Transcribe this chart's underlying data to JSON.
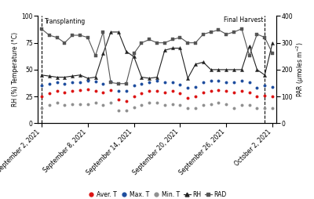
{
  "x_labels": [
    "September 2, 2021",
    "September 8, 2021",
    "September 14, 2021",
    "September 20, 2021",
    "September 26, 2021",
    "October 2, 2021"
  ],
  "x_tick_positions": [
    0,
    6,
    12,
    18,
    24,
    30
  ],
  "transplanting_x": 0,
  "final_harvest_x": 29,
  "aver_T": [
    25,
    28,
    30,
    29,
    30,
    31,
    32,
    30,
    29,
    31,
    22,
    21,
    25,
    28,
    30,
    30,
    29,
    30,
    28,
    24,
    25,
    29,
    30,
    31,
    30,
    29,
    30,
    29,
    25,
    26,
    25
  ],
  "max_T": [
    35,
    37,
    38,
    37,
    38,
    38,
    40,
    39,
    37,
    39,
    30,
    30,
    35,
    37,
    38,
    40,
    38,
    38,
    36,
    33,
    34,
    38,
    40,
    40,
    38,
    38,
    40,
    38,
    33,
    35,
    34
  ],
  "min_T": [
    14,
    17,
    19,
    17,
    18,
    18,
    18,
    19,
    17,
    19,
    12,
    12,
    15,
    17,
    19,
    19,
    17,
    18,
    17,
    14,
    14,
    17,
    18,
    19,
    18,
    14,
    17,
    17,
    14,
    14,
    14
  ],
  "RH": [
    45,
    44,
    43,
    43,
    44,
    45,
    42,
    43,
    65,
    85,
    85,
    67,
    62,
    43,
    42,
    43,
    68,
    70,
    70,
    42,
    55,
    57,
    50,
    50,
    50,
    50,
    50,
    72,
    50,
    45,
    75
  ],
  "RAD": [
    352,
    328,
    320,
    300,
    328,
    328,
    320,
    252,
    340,
    152,
    148,
    148,
    260,
    300,
    312,
    300,
    300,
    312,
    320,
    300,
    300,
    332,
    340,
    348,
    332,
    340,
    352,
    252,
    332,
    320,
    260
  ],
  "ylim": [
    0,
    100
  ],
  "y2lim": [
    0,
    400
  ],
  "yticks": [
    0,
    25,
    50,
    75,
    100
  ],
  "y2ticks": [
    0,
    100,
    200,
    300,
    400
  ],
  "color_aver": "#dc1414",
  "color_max": "#1f4e9f",
  "color_min": "#909090",
  "color_RH": "#222222",
  "color_RAD": "#555555",
  "bg_color": "#ffffff",
  "fig_width": 4.0,
  "fig_height": 2.54,
  "dpi": 100
}
